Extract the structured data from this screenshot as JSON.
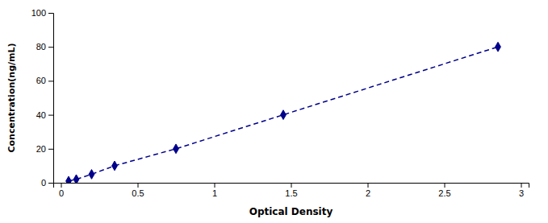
{
  "chart_data": {
    "type": "line",
    "x": [
      0.05,
      0.1,
      0.2,
      0.35,
      0.75,
      1.45,
      2.85
    ],
    "values": [
      1,
      2,
      5,
      10,
      20,
      40,
      80
    ],
    "color": "#00008B",
    "marker": "diamond",
    "line_style": "dashed",
    "xlabel": "Optical Density",
    "ylabel": "Concentration(ng/mL)",
    "xlim": [
      -0.05,
      3.05
    ],
    "ylim": [
      0,
      100
    ],
    "xticks": [
      0,
      0.5,
      1,
      1.5,
      2,
      2.5,
      3
    ],
    "yticks": [
      0,
      20,
      40,
      60,
      80,
      100
    ]
  }
}
